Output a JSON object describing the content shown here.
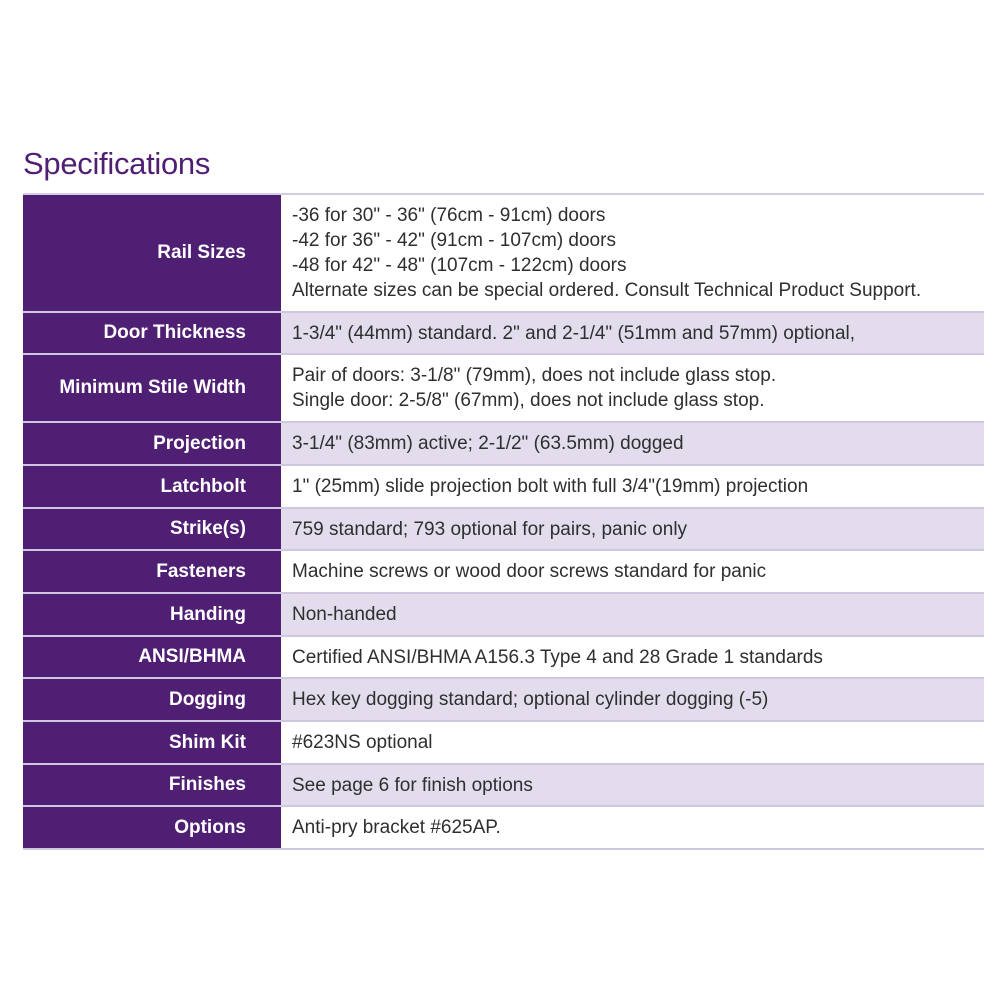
{
  "title": "Specifications",
  "colors": {
    "header_purple": "#4f1f73",
    "stripe": "#e2dced"
  },
  "rows": [
    {
      "label": "Rail Sizes",
      "lines": [
        "-36 for 30\" - 36\" (76cm - 91cm) doors",
        "-42 for 36\" - 42\" (91cm - 107cm) doors",
        "-48 for 42\" - 48\" (107cm - 122cm) doors",
        "Alternate sizes can be special ordered. Consult Technical Product Support."
      ]
    },
    {
      "label": "Door Thickness",
      "lines": [
        "1-3/4\" (44mm) standard. 2\" and 2-1/4\" (51mm and 57mm) optional,"
      ]
    },
    {
      "label": "Minimum Stile Width",
      "lines": [
        "Pair of doors: 3-1/8\" (79mm), does not include glass stop.",
        "Single door: 2-5/8\" (67mm), does not include glass stop."
      ]
    },
    {
      "label": "Projection",
      "lines": [
        "3-1/4\" (83mm) active; 2-1/2\" (63.5mm) dogged"
      ]
    },
    {
      "label": "Latchbolt",
      "lines": [
        "1\" (25mm) slide projection bolt with full 3/4\"(19mm) projection"
      ]
    },
    {
      "label": "Strike(s)",
      "lines": [
        "759 standard; 793 optional for pairs, panic only"
      ]
    },
    {
      "label": "Fasteners",
      "lines": [
        "Machine screws or wood door screws standard for panic"
      ]
    },
    {
      "label": "Handing",
      "lines": [
        "Non-handed"
      ]
    },
    {
      "label": "ANSI/BHMA",
      "lines": [
        "Certified ANSI/BHMA A156.3 Type 4 and 28 Grade 1 standards"
      ]
    },
    {
      "label": "Dogging",
      "lines": [
        "Hex key dogging standard; optional cylinder dogging (-5)"
      ]
    },
    {
      "label": "Shim Kit",
      "lines": [
        "#623NS optional"
      ]
    },
    {
      "label": "Finishes",
      "lines": [
        "See page 6 for finish options"
      ]
    },
    {
      "label": "Options",
      "lines": [
        "Anti-pry bracket #625AP."
      ]
    }
  ]
}
